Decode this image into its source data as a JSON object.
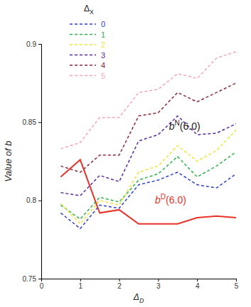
{
  "chart_data": {
    "type": "line",
    "x_label": "ΔD",
    "y_label": "Value of b",
    "legend_title": "ΔX",
    "legend": "upper left",
    "x": [
      0.5,
      1,
      1.5,
      2,
      2.5,
      3,
      3.5,
      4,
      4.5,
      5
    ],
    "xlim": [
      0,
      5
    ],
    "xticks": [
      0,
      1,
      2,
      3,
      4,
      5
    ],
    "ylim": [
      0.75,
      0.9
    ],
    "yticks": [
      0.75,
      0.8,
      0.85,
      0.9
    ],
    "grid": false,
    "series": [
      {
        "name": "0",
        "color": "#2b3fcf",
        "line_style": "dashed",
        "values": [
          0.792,
          0.782,
          0.797,
          0.795,
          0.81,
          0.813,
          0.818,
          0.81,
          0.808,
          0.817
        ]
      },
      {
        "name": "1",
        "color": "#2db34a",
        "line_style": "dashed",
        "values": [
          0.797,
          0.788,
          0.802,
          0.799,
          0.813,
          0.817,
          0.828,
          0.815,
          0.822,
          0.831
        ]
      },
      {
        "name": "2",
        "color": "#f2e23a",
        "line_style": "dashed",
        "values": [
          0.798,
          0.785,
          0.8,
          0.797,
          0.818,
          0.822,
          0.835,
          0.825,
          0.832,
          0.845
        ]
      },
      {
        "name": "3",
        "color": "#5a2aa0",
        "line_style": "dashed",
        "values": [
          0.805,
          0.803,
          0.816,
          0.812,
          0.838,
          0.842,
          0.854,
          0.842,
          0.843,
          0.849
        ]
      },
      {
        "name": "4",
        "color": "#8b2a3a",
        "line_style": "dashed",
        "values": [
          0.822,
          0.818,
          0.829,
          0.829,
          0.854,
          0.856,
          0.869,
          0.863,
          0.869,
          0.875
        ]
      },
      {
        "name": "5",
        "color": "#f4a6b8",
        "line_style": "dashed",
        "values": [
          0.833,
          0.837,
          0.853,
          0.853,
          0.869,
          0.871,
          0.881,
          0.878,
          0.891,
          0.895
        ]
      },
      {
        "color": "#e8322a",
        "line_style": "solid",
        "values": [
          0.815,
          0.826,
          0.792,
          0.794,
          0.785,
          0.785,
          0.785,
          0.789,
          0.79,
          0.789
        ]
      }
    ],
    "annotations": [
      {
        "text": "bN(6.0)",
        "x": 3.28,
        "y": 0.845,
        "color": "#222222"
      },
      {
        "text": "bD(6.0)",
        "x": 2.92,
        "y": 0.798,
        "color": "#e8322a"
      }
    ]
  }
}
